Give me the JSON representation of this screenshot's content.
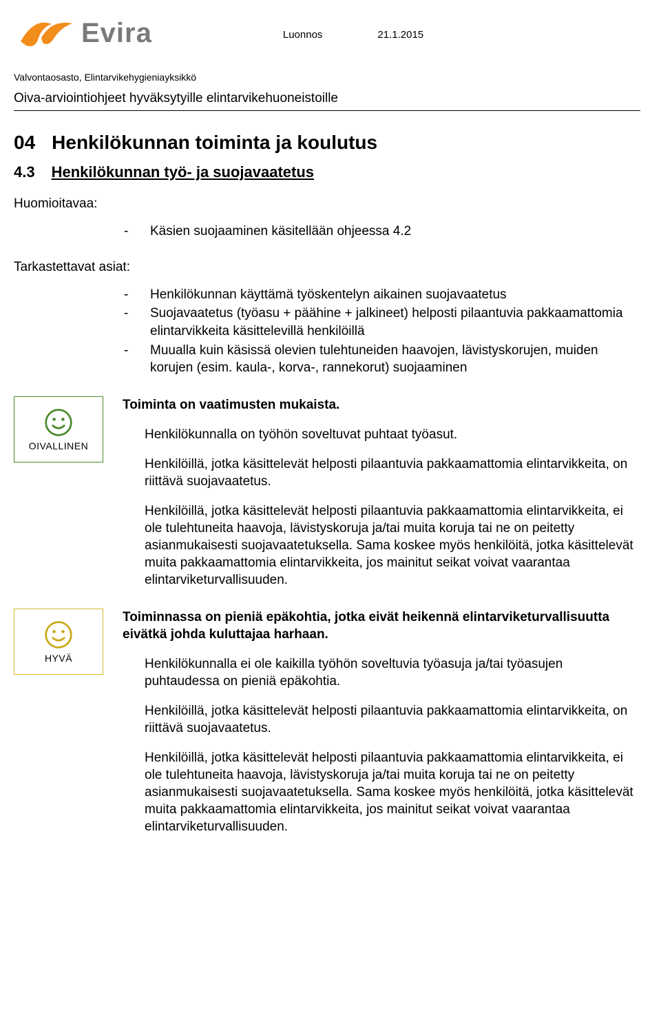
{
  "header": {
    "logo_text": "Evira",
    "logo_color": "#f28c1a",
    "logo_text_color": "#7a7a7a",
    "draft_label": "Luonnos",
    "date": "21.1.2015"
  },
  "department": "Valvontaosasto, Elintarvikehygieniayksikkö",
  "doc_title": "Oiva-arviointiohjeet hyväksytyille elintarvikehuoneistoille",
  "section": {
    "num": "04",
    "title": "Henkilökunnan toiminta ja koulutus"
  },
  "subsection": {
    "num": "4.3",
    "title": "Henkilökunnan työ- ja suojavaatetus"
  },
  "notes_label": "Huomioitavaa:",
  "notes_items": [
    "Käsien suojaaminen käsitellään ohjeessa 4.2"
  ],
  "check_label": "Tarkastettavat asiat:",
  "check_items": [
    "Henkilökunnan käyttämä työskentelyn aikainen suojavaatetus",
    "Suojavaatetus (työasu + päähine + jalkineet) helposti pilaantuvia pakkaamattomia elintarvikkeita käsittelevillä henkilöillä",
    "Muualla kuin käsissä olevien tulehtuneiden haavojen, lävistyskorujen, muiden korujen (esim. kaula-, korva-, rannekorut) suojaaminen"
  ],
  "ratings": [
    {
      "label": "OIVALLINEN",
      "style": "green",
      "smiley_stroke": "#4a8a2a",
      "smiley_fill": "#4a8a2a",
      "lead": "Toiminta on vaatimusten mukaista.",
      "paragraphs": [
        "Henkilökunnalla on työhön soveltuvat puhtaat työasut.",
        "Henkilöillä, jotka käsittelevät helposti pilaantuvia pakkaamattomia elintarvikkeita, on riittävä suojavaatetus.",
        "Henkilöillä, jotka käsittelevät helposti pilaantuvia pakkaamattomia elintarvikkeita, ei ole tulehtuneita haavoja, lävistyskoruja ja/tai muita koruja tai ne on peitetty asianmukaisesti suojavaatetuksella. Sama koskee myös henkilöitä, jotka käsittelevät muita pakkaamattomia elintarvikkeita, jos mainitut seikat voivat vaarantaa elintarviketurvallisuuden."
      ]
    },
    {
      "label": "HYVÄ",
      "style": "yellow",
      "smiley_stroke": "#c9a818",
      "smiley_fill": "none",
      "lead": "Toiminnassa on pieniä epäkohtia, jotka eivät heikennä elintarviketurvallisuutta eivätkä johda kuluttajaa harhaan.",
      "paragraphs": [
        "Henkilökunnalla ei ole kaikilla työhön soveltuvia työasuja ja/tai työasujen puhtaudessa on pieniä epäkohtia.",
        "Henkilöillä, jotka käsittelevät helposti pilaantuvia pakkaamattomia elintarvikkeita, on riittävä suojavaatetus.",
        "Henkilöillä, jotka käsittelevät helposti pilaantuvia pakkaamattomia elintarvikkeita, ei ole tulehtuneita haavoja, lävistyskoruja ja/tai muita koruja tai ne on peitetty asianmukaisesti suojavaatetuksella. Sama koskee myös henkilöitä, jotka käsittelevät muita pakkaamattomia elintarvikkeita, jos mainitut seikat voivat vaarantaa elintarviketurvallisuuden."
      ]
    }
  ]
}
